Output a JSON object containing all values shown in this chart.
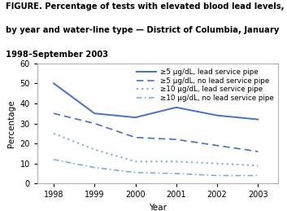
{
  "years": [
    1998,
    1999,
    2000,
    2001,
    2002,
    2003
  ],
  "line1": [
    50,
    35,
    33,
    38,
    34,
    32
  ],
  "line2": [
    35,
    30,
    23,
    22,
    19,
    16
  ],
  "line3": [
    25,
    17,
    11,
    11,
    10,
    9
  ],
  "line4": [
    12,
    8,
    5.5,
    5,
    4,
    4
  ],
  "title_line1": "FIGURE. Percentage of tests with elevated blood lead levels,",
  "title_line2": "by year and water-line type — District of Columbia, January",
  "title_line3": "1998–September 2003",
  "xlabel": "Year",
  "ylabel": "Percentage",
  "ylim": [
    0,
    60
  ],
  "yticks": [
    0,
    10,
    20,
    30,
    40,
    50,
    60
  ],
  "color_dark": "#4472C4",
  "color_light": "#7BAFD4",
  "legend_labels": [
    "≥5 μg/dL, lead service pipe",
    "≥5 μg/dL, no lead service pipe",
    "≥10 μg/dL, lead service pipe",
    "≥10 μg/dL, no lead service pipe"
  ],
  "title_fontsize": 7.2,
  "legend_fontsize": 6.3,
  "tick_fontsize": 7,
  "axis_label_fontsize": 7.5
}
